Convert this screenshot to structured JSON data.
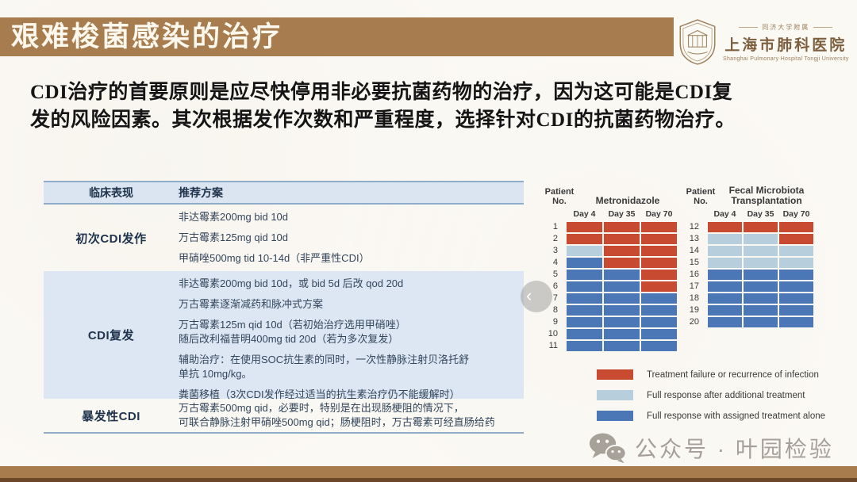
{
  "slide": {
    "title": "艰难梭菌感染的治疗",
    "logo": {
      "affiliation": "同济大学附属",
      "hospital_cn": "上海市肺科医院",
      "hospital_en": "Shanghai Pulmonary Hospital Tongji University"
    },
    "intro_text": "CDI治疗的首要原则是应尽快停用非必要抗菌药物的治疗，因为这可能是CDI复\n发的风险因素。其次根据发作次数和严重程度，选择针对CDI的抗菌药物治疗。",
    "watermark": "公众号 · 叶园检验",
    "carousel_prev": "‹"
  },
  "table": {
    "headers": [
      "临床表现",
      "推荐方案"
    ],
    "rows": [
      {
        "condition": "初次CDI发作",
        "treatments": [
          "非达霉素200mg bid 10d",
          "万古霉素125mg qid 10d",
          "甲硝唑500mg tid 10-14d（非严重性CDI）"
        ]
      },
      {
        "condition": "CDI复发",
        "treatments": [
          "非达霉素200mg bid 10d，或 bid 5d 后改 qod 20d",
          "万古霉素逐渐减药和脉冲式方案",
          "万古霉素125m qid 10d（若初始治疗选用甲硝唑）\n随后改利福昔明400mg tid 20d（若为多次复发）",
          "辅助治疗：在使用SOC抗生素的同时，一次性静脉注射贝洛托舒\n单抗 10mg/kg。",
          "粪菌移植（3次CDI发作经过适当的抗生素治疗仍不能缓解时）"
        ]
      },
      {
        "condition": "暴发性CDI",
        "treatments": [
          "万古霉素500mg qid，必要时，特别是在出现肠梗阻的情况下，\n可联合静脉注射甲硝唑500mg qid；肠梗阻时，万古霉素可经直肠给药"
        ]
      }
    ]
  },
  "chart_data": {
    "type": "heatmap",
    "colors": {
      "F": "#c84a31",
      "P": "#b7cfdc",
      "R": "#4c77b7"
    },
    "panels": [
      {
        "patient_header": "Patient\nNo.",
        "title": "Metronidazole",
        "columns": [
          "Day 4",
          "Day 35",
          "Day 70"
        ],
        "rows": [
          {
            "patient": 1,
            "cells": [
              "F",
              "F",
              "F"
            ]
          },
          {
            "patient": 2,
            "cells": [
              "F",
              "F",
              "F"
            ]
          },
          {
            "patient": 3,
            "cells": [
              "P",
              "F",
              "F"
            ]
          },
          {
            "patient": 4,
            "cells": [
              "R",
              "F",
              "F"
            ]
          },
          {
            "patient": 5,
            "cells": [
              "R",
              "R",
              "F"
            ]
          },
          {
            "patient": 6,
            "cells": [
              "R",
              "R",
              "F"
            ]
          },
          {
            "patient": 7,
            "cells": [
              "R",
              "R",
              "R"
            ]
          },
          {
            "patient": 8,
            "cells": [
              "R",
              "R",
              "R"
            ]
          },
          {
            "patient": 9,
            "cells": [
              "R",
              "R",
              "R"
            ]
          },
          {
            "patient": 10,
            "cells": [
              "R",
              "R",
              "R"
            ]
          },
          {
            "patient": 11,
            "cells": [
              "R",
              "R",
              "R"
            ]
          }
        ]
      },
      {
        "patient_header": "Patient\nNo.",
        "title": "Fecal Microbiota\nTransplantation",
        "columns": [
          "Day 4",
          "Day 35",
          "Day 70"
        ],
        "rows": [
          {
            "patient": 12,
            "cells": [
              "F",
              "F",
              "F"
            ]
          },
          {
            "patient": 13,
            "cells": [
              "P",
              "P",
              "F"
            ]
          },
          {
            "patient": 14,
            "cells": [
              "P",
              "P",
              "P"
            ]
          },
          {
            "patient": 15,
            "cells": [
              "P",
              "P",
              "P"
            ]
          },
          {
            "patient": 16,
            "cells": [
              "R",
              "R",
              "R"
            ]
          },
          {
            "patient": 17,
            "cells": [
              "R",
              "R",
              "R"
            ]
          },
          {
            "patient": 18,
            "cells": [
              "R",
              "R",
              "R"
            ]
          },
          {
            "patient": 19,
            "cells": [
              "R",
              "R",
              "R"
            ]
          },
          {
            "patient": 20,
            "cells": [
              "R",
              "R",
              "R"
            ]
          }
        ]
      }
    ],
    "legend": [
      {
        "code": "F",
        "color": "#c84a31",
        "label": "Treatment failure or recurrence of infection"
      },
      {
        "code": "P",
        "color": "#b7cfdc",
        "label": "Full response after additional treatment"
      },
      {
        "code": "R",
        "color": "#4c77b7",
        "label": "Full response with assigned treatment alone"
      }
    ]
  }
}
